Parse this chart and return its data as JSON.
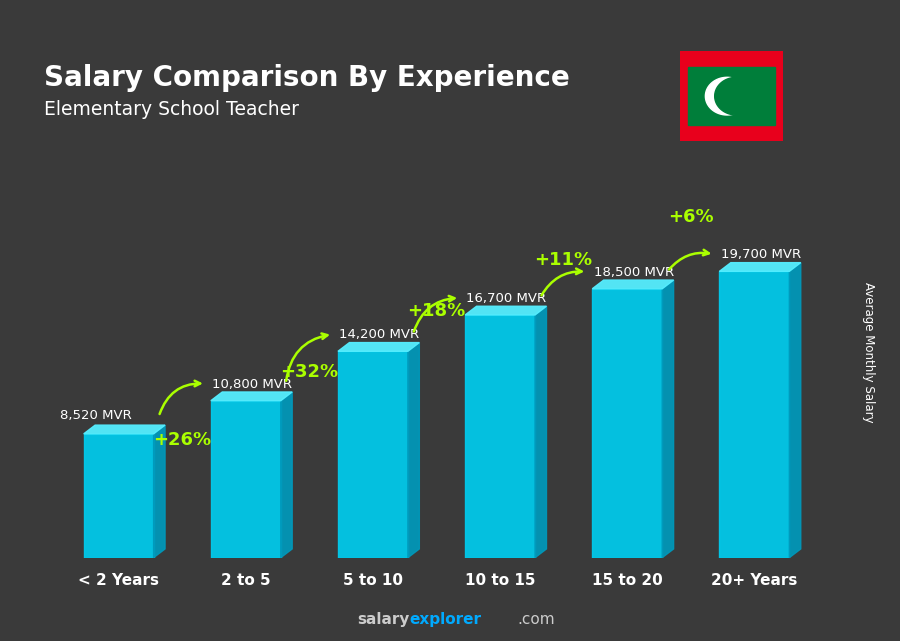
{
  "title": "Salary Comparison By Experience",
  "subtitle": "Elementary School Teacher",
  "categories": [
    "< 2 Years",
    "2 to 5",
    "5 to 10",
    "10 to 15",
    "15 to 20",
    "20+ Years"
  ],
  "values": [
    8520,
    10800,
    14200,
    16700,
    18500,
    19700
  ],
  "bar_color_face": "#00ccee",
  "bar_color_top": "#55eeff",
  "bar_color_side": "#0099bb",
  "pct_labels": [
    "+26%",
    "+32%",
    "+18%",
    "+11%",
    "+6%"
  ],
  "salary_labels": [
    "8,520 MVR",
    "10,800 MVR",
    "14,200 MVR",
    "16,700 MVR",
    "18,500 MVR",
    "19,700 MVR"
  ],
  "pct_color": "#aaff00",
  "background_color": "#3a3a3a",
  "title_color": "#ffffff",
  "subtitle_color": "#ffffff",
  "ylabel_text": "Average Monthly Salary",
  "footer_salary_color": "#cccccc",
  "footer_explorer_color": "#00aaff",
  "footer_com_color": "#cccccc",
  "flag_red": "#e8001c",
  "flag_green": "#007e3a",
  "flag_white": "#ffffff"
}
